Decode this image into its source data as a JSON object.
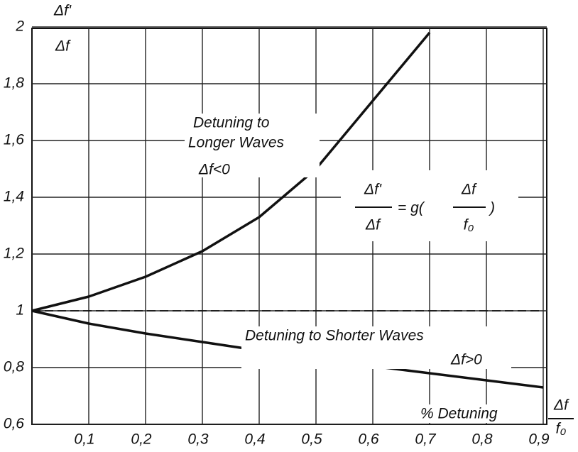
{
  "chart_data": {
    "type": "line",
    "y_label": {
      "numerator": "Δf'",
      "denominator": "Δf"
    },
    "x_label": {
      "text": "% Detuning",
      "numerator": "Δf",
      "denominator": "f₀"
    },
    "formula": {
      "left_numerator": "Δf'",
      "left_denominator": "Δf",
      "middle": "= g(",
      "right_numerator": "Δf",
      "right_denominator": "f₀",
      "end": ")"
    },
    "annotations": [
      {
        "lines": [
          "Detuning to",
          "Longer Waves"
        ],
        "condition": "Δf<0"
      },
      {
        "lines": [
          "Detuning to Shorter Waves"
        ],
        "condition": "Δf>0"
      }
    ],
    "xlim": [
      0,
      0.9
    ],
    "ylim": [
      0.6,
      2
    ],
    "xticks": [
      {
        "value": 0.1,
        "label": "0,1"
      },
      {
        "value": 0.2,
        "label": "0,2"
      },
      {
        "value": 0.3,
        "label": "0,3"
      },
      {
        "value": 0.4,
        "label": "0,4"
      },
      {
        "value": 0.5,
        "label": "0,5"
      },
      {
        "value": 0.6,
        "label": "0,6"
      },
      {
        "value": 0.7,
        "label": "0,7"
      },
      {
        "value": 0.8,
        "label": "0,8"
      },
      {
        "value": 0.9,
        "label": "0,9"
      }
    ],
    "yticks": [
      {
        "value": 0.6,
        "label": "0,6"
      },
      {
        "value": 0.8,
        "label": "0,8"
      },
      1,
      {
        "value": 1.2,
        "label": "1,2"
      },
      {
        "value": 1.4,
        "label": "1,4"
      },
      {
        "value": 1.6,
        "label": "1,6"
      },
      {
        "value": 1.8,
        "label": "1,8"
      },
      2
    ],
    "grid": true,
    "hlines": [
      1
    ],
    "series": [
      {
        "color": "#111111",
        "x": [
          0,
          0.1,
          0.2,
          0.3,
          0.4,
          0.5,
          0.6,
          0.7
        ],
        "values": [
          1,
          1.05,
          1.12,
          1.21,
          1.33,
          1.5,
          1.74,
          1.98
        ]
      },
      {
        "color": "#111111",
        "x": [
          0,
          0.1,
          0.2,
          0.3,
          0.4,
          0.5,
          0.6,
          0.7,
          0.8,
          0.9
        ],
        "values": [
          1,
          0.955,
          0.92,
          0.89,
          0.86,
          0.835,
          0.805,
          0.78,
          0.755,
          0.73
        ]
      }
    ]
  }
}
